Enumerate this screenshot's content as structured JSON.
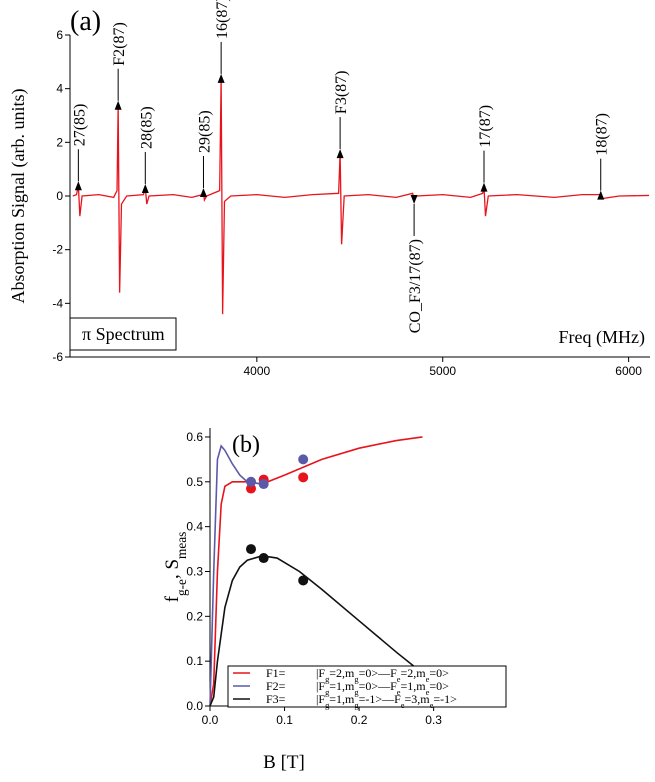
{
  "chart_data": [
    {
      "type": "line",
      "panel_label": "(a)",
      "ylabel": "Absorption Signal (arb. units)",
      "xlabel": "Freq (MHz)",
      "box_label": "π  Spectrum",
      "xlim": [
        2995,
        6115
      ],
      "xticks": [
        4000,
        5000,
        6000
      ],
      "ylim": [
        -6,
        6
      ],
      "yticks": [
        -6,
        -4,
        -2,
        0,
        2,
        4,
        6
      ],
      "series": [
        {
          "color": "#e8141c",
          "x": [
            3010,
            3030,
            3040,
            3048,
            3060,
            3150,
            3230,
            3248,
            3254,
            3262,
            3272,
            3300,
            3390,
            3400,
            3408,
            3420,
            3550,
            3650,
            3708,
            3713,
            3718,
            3730,
            3800,
            3808,
            3816,
            3826,
            3860,
            4000,
            4150,
            4300,
            4440,
            4448,
            4456,
            4470,
            4600,
            4750,
            4838,
            4846,
            4860,
            5000,
            5150,
            5215,
            5222,
            5230,
            5245,
            5400,
            5600,
            5750,
            5845,
            5855,
            5950,
            6110
          ],
          "values": [
            0,
            0.05,
            0.4,
            -0.75,
            0,
            0.05,
            -0.05,
            0.2,
            3.4,
            -3.6,
            -0.3,
            0,
            0.05,
            0.3,
            -0.3,
            0,
            0.05,
            -0.05,
            0.05,
            0.15,
            -0.15,
            0,
            0.2,
            4.4,
            -4.4,
            -0.2,
            0,
            0.05,
            -0.05,
            0.05,
            0.1,
            1.6,
            -1.8,
            0,
            0.05,
            -0.05,
            0.1,
            -0.15,
            0,
            0.05,
            -0.05,
            0.1,
            0.35,
            -0.75,
            0,
            0.05,
            -0.05,
            0.05,
            0.05,
            -0.1,
            0,
            0.02
          ]
        }
      ],
      "annotation_color": "#1f4fbf",
      "annotations": [
        {
          "text": "27(85)",
          "x": 3040,
          "y": 0.4,
          "side": "above"
        },
        {
          "text": "F2(87)",
          "x": 3254,
          "y": 3.4,
          "side": "above"
        },
        {
          "text": "28(85)",
          "x": 3400,
          "y": 0.3,
          "side": "above"
        },
        {
          "text": "29(85)",
          "x": 3713,
          "y": 0.15,
          "side": "above"
        },
        {
          "text": "16(87)",
          "x": 3808,
          "y": 4.4,
          "side": "above"
        },
        {
          "text": "F3(87)",
          "x": 4448,
          "y": 1.6,
          "side": "above"
        },
        {
          "text": "CO_F3/17(87)",
          "x": 4846,
          "y": -0.15,
          "side": "below"
        },
        {
          "text": "17(87)",
          "x": 5222,
          "y": 0.35,
          "side": "above"
        },
        {
          "text": "18(87)",
          "x": 5850,
          "y": 0.05,
          "side": "above"
        }
      ]
    },
    {
      "type": "line",
      "panel_label": "(b)",
      "xlabel": "B [T]",
      "ylabel": [
        {
          "text": "f"
        },
        {
          "text": "g-e",
          "sub": true
        },
        {
          "text": ", S"
        },
        {
          "text": "meas",
          "sub": true
        }
      ],
      "xlim": [
        0,
        0.33
      ],
      "xticks": [
        {
          "value": 0,
          "label": "0.0"
        },
        0.1,
        0.2,
        0.3
      ],
      "ylim": [
        0,
        0.62
      ],
      "yticks": [
        {
          "value": 0,
          "label": "0.0"
        },
        0.1,
        0.2,
        0.3,
        0.4,
        0.5,
        0.6
      ],
      "series": [
        {
          "name": "F1=",
          "color": "#e8141c",
          "state": [
            {
              "text": "|F"
            },
            {
              "text": "g",
              "sub": true
            },
            {
              "text": "=2,m"
            },
            {
              "text": "g",
              "sub": true
            },
            {
              "text": "=0>—F"
            },
            {
              "text": "e",
              "sub": true
            },
            {
              "text": "=2,m"
            },
            {
              "text": "e",
              "sub": true
            },
            {
              "text": "=0>"
            }
          ],
          "x": [
            0,
            0.005,
            0.01,
            0.015,
            0.02,
            0.03,
            0.05,
            0.07,
            0.1,
            0.15,
            0.2,
            0.25,
            0.285
          ],
          "values": [
            0,
            0.05,
            0.3,
            0.45,
            0.49,
            0.5,
            0.5,
            0.495,
            0.515,
            0.55,
            0.575,
            0.592,
            0.6
          ],
          "meas_x": [
            0.055,
            0.072,
            0.125
          ],
          "meas": [
            0.485,
            0.505,
            0.51
          ]
        },
        {
          "name": "F2=",
          "color": "#5a5aa8",
          "state": [
            {
              "text": "|F"
            },
            {
              "text": "g",
              "sub": true
            },
            {
              "text": "=1,m"
            },
            {
              "text": "g",
              "sub": true
            },
            {
              "text": "=0>—F"
            },
            {
              "text": "e",
              "sub": true
            },
            {
              "text": "=1,m"
            },
            {
              "text": "e",
              "sub": true
            },
            {
              "text": "=0>"
            }
          ],
          "x": [
            0,
            0.005,
            0.01,
            0.015,
            0.02,
            0.03,
            0.04,
            0.05,
            0.07
          ],
          "values": [
            0,
            0.3,
            0.55,
            0.58,
            0.57,
            0.54,
            0.515,
            0.5,
            0.495
          ],
          "meas_x": [
            0.055,
            0.072,
            0.125
          ],
          "meas": [
            0.5,
            0.495,
            0.55
          ]
        },
        {
          "name": "F3=",
          "color": "#111111",
          "state": [
            {
              "text": "|F"
            },
            {
              "text": "g",
              "sub": true
            },
            {
              "text": "=1,m"
            },
            {
              "text": "g",
              "sub": true
            },
            {
              "text": "=-1>—F"
            },
            {
              "text": "e",
              "sub": true
            },
            {
              "text": "=3,m"
            },
            {
              "text": "e",
              "sub": true
            },
            {
              "text": "=-1>"
            }
          ],
          "x": [
            0,
            0.005,
            0.01,
            0.02,
            0.03,
            0.04,
            0.05,
            0.07,
            0.09,
            0.12,
            0.15,
            0.2,
            0.25,
            0.28
          ],
          "values": [
            0,
            0.02,
            0.1,
            0.22,
            0.28,
            0.31,
            0.325,
            0.335,
            0.33,
            0.3,
            0.26,
            0.19,
            0.12,
            0.08
          ],
          "meas_x": [
            0.055,
            0.072,
            0.125
          ],
          "meas": [
            0.35,
            0.33,
            0.28
          ]
        }
      ]
    }
  ]
}
